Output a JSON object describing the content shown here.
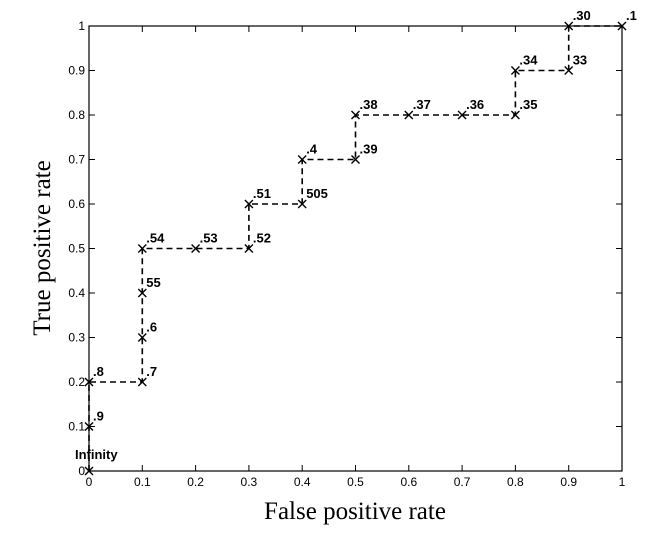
{
  "chart_data": {
    "type": "line",
    "title": "",
    "xlabel": "False positive rate",
    "ylabel": "True positive rate",
    "xlim": [
      0,
      1
    ],
    "ylim": [
      0,
      1
    ],
    "xticks": [
      "0",
      "0.1",
      "0.2",
      "0.3",
      "0.4",
      "0.5",
      "0.6",
      "0.7",
      "0.8",
      "0.9",
      "1"
    ],
    "yticks": [
      "0",
      "0.1",
      "0.2",
      "0.3",
      "0.4",
      "0.5",
      "0.6",
      "0.7",
      "0.8",
      "0.9",
      "1"
    ],
    "grid": false,
    "line_style": "dashed",
    "marker": "x",
    "points": [
      {
        "x": 0.0,
        "y": 0.0,
        "label": "Infinity"
      },
      {
        "x": 0.0,
        "y": 0.1,
        "label": ".9"
      },
      {
        "x": 0.0,
        "y": 0.2,
        "label": ".8"
      },
      {
        "x": 0.1,
        "y": 0.2,
        "label": ".7"
      },
      {
        "x": 0.1,
        "y": 0.3,
        "label": ".6"
      },
      {
        "x": 0.1,
        "y": 0.4,
        "label": "55"
      },
      {
        "x": 0.1,
        "y": 0.5,
        "label": ".54"
      },
      {
        "x": 0.2,
        "y": 0.5,
        "label": ".53"
      },
      {
        "x": 0.3,
        "y": 0.5,
        "label": ".52"
      },
      {
        "x": 0.3,
        "y": 0.6,
        "label": ".51"
      },
      {
        "x": 0.4,
        "y": 0.6,
        "label": "505"
      },
      {
        "x": 0.4,
        "y": 0.7,
        "label": ".4"
      },
      {
        "x": 0.5,
        "y": 0.7,
        "label": ".39"
      },
      {
        "x": 0.5,
        "y": 0.8,
        "label": ".38"
      },
      {
        "x": 0.6,
        "y": 0.8,
        "label": ".37"
      },
      {
        "x": 0.7,
        "y": 0.8,
        "label": ".36"
      },
      {
        "x": 0.8,
        "y": 0.8,
        "label": ".35"
      },
      {
        "x": 0.8,
        "y": 0.9,
        "label": ".34"
      },
      {
        "x": 0.9,
        "y": 0.9,
        "label": "33"
      },
      {
        "x": 0.9,
        "y": 1.0,
        "label": ".30"
      },
      {
        "x": 1.0,
        "y": 1.0,
        "label": ".1"
      }
    ]
  }
}
